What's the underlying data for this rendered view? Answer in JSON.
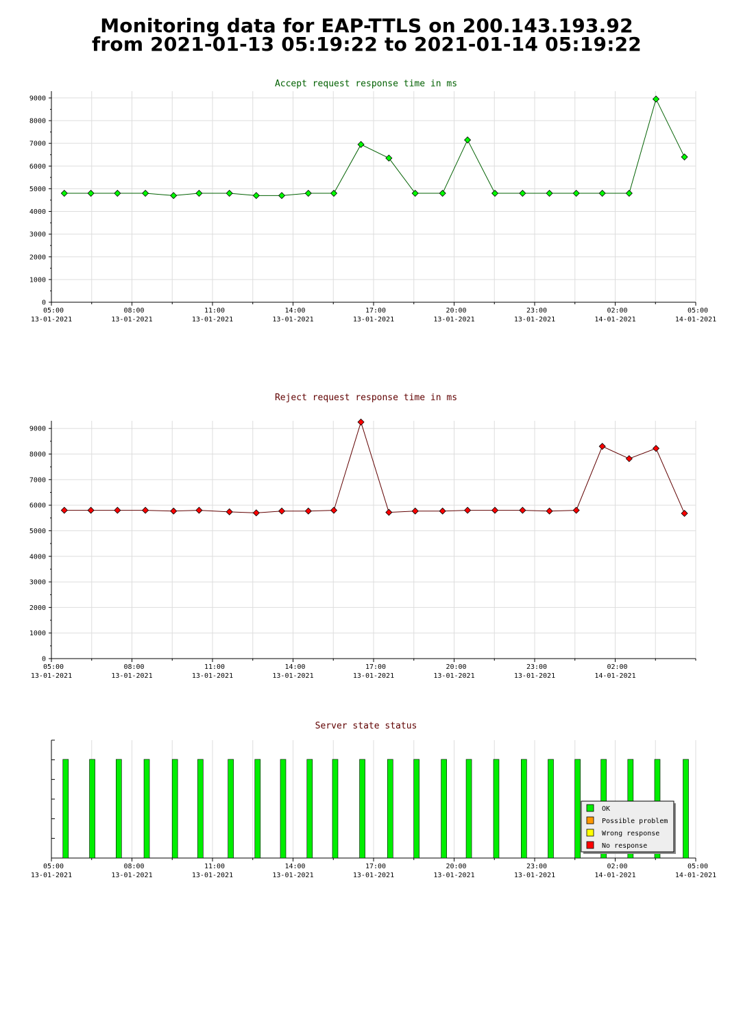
{
  "header": {
    "line1": "Monitoring data for EAP-TTLS on 200.143.193.92",
    "line2": "from 2021-01-13 05:19:22 to 2021-01-14 05:19:22"
  },
  "colors": {
    "accept_line": "#006000",
    "accept_marker": "#00ff00",
    "reject_line": "#600000",
    "reject_marker": "#ff0000",
    "status_ok": "#00ee00",
    "status_possible_problem": "#ff9900",
    "status_wrong_response": "#ffff00",
    "status_no_response": "#ff0000",
    "grid": "#dddddd"
  },
  "chart_data": [
    {
      "type": "line",
      "title": "Accept request response time in ms",
      "xlabel": "",
      "ylabel": "",
      "ylim": [
        0,
        9300
      ],
      "yticks": [
        0,
        1000,
        2000,
        3000,
        4000,
        5000,
        6000,
        7000,
        8000,
        9000
      ],
      "xlim_hours": [
        0,
        24
      ],
      "xticks": [
        {
          "h": 0,
          "time": "05:00",
          "date": "13-01-2021"
        },
        {
          "h": 3,
          "time": "08:00",
          "date": "13-01-2021"
        },
        {
          "h": 6,
          "time": "11:00",
          "date": "13-01-2021"
        },
        {
          "h": 9,
          "time": "14:00",
          "date": "13-01-2021"
        },
        {
          "h": 12,
          "time": "17:00",
          "date": "13-01-2021"
        },
        {
          "h": 15,
          "time": "20:00",
          "date": "13-01-2021"
        },
        {
          "h": 18,
          "time": "23:00",
          "date": "13-01-2021"
        },
        {
          "h": 21,
          "time": "02:00",
          "date": "14-01-2021"
        },
        {
          "h": 24,
          "time": "05:00",
          "date": "14-01-2021"
        }
      ],
      "grid": true,
      "series": [
        {
          "x": [
            0.48,
            1.47,
            2.46,
            3.5,
            4.55,
            5.5,
            6.63,
            7.63,
            8.58,
            9.57,
            10.52,
            11.53,
            12.57,
            13.55,
            14.57,
            15.5,
            16.52,
            17.55,
            18.55,
            19.55,
            20.52,
            21.52,
            22.52,
            23.58
          ],
          "values": [
            4800,
            4800,
            4800,
            4800,
            4700,
            4800,
            4800,
            4700,
            4700,
            4800,
            4800,
            6950,
            6350,
            4800,
            4800,
            7150,
            4800,
            4800,
            4800,
            4800,
            4800,
            4800,
            8950,
            6400
          ]
        }
      ]
    },
    {
      "type": "line",
      "title": "Reject request response time in ms",
      "xlabel": "",
      "ylabel": "",
      "ylim": [
        0,
        9300
      ],
      "yticks": [
        0,
        1000,
        2000,
        3000,
        4000,
        5000,
        6000,
        7000,
        8000,
        9000
      ],
      "xlim_hours": [
        0,
        24
      ],
      "xticks": [
        {
          "h": 0,
          "time": "05:00",
          "date": "13-01-2021"
        },
        {
          "h": 3,
          "time": "08:00",
          "date": "13-01-2021"
        },
        {
          "h": 6,
          "time": "11:00",
          "date": "13-01-2021"
        },
        {
          "h": 9,
          "time": "14:00",
          "date": "13-01-2021"
        },
        {
          "h": 12,
          "time": "17:00",
          "date": "13-01-2021"
        },
        {
          "h": 15,
          "time": "20:00",
          "date": "13-01-2021"
        },
        {
          "h": 18,
          "time": "23:00",
          "date": "13-01-2021"
        },
        {
          "h": 21,
          "time": "02:00",
          "date": "14-01-2021"
        }
      ],
      "grid": true,
      "series": [
        {
          "x": [
            0.48,
            1.47,
            2.46,
            3.5,
            4.55,
            5.5,
            6.63,
            7.63,
            8.58,
            9.57,
            10.52,
            11.53,
            12.57,
            13.55,
            14.57,
            15.5,
            16.52,
            17.55,
            18.55,
            19.55,
            20.52,
            21.52,
            22.52,
            23.58
          ],
          "values": [
            5800,
            5800,
            5800,
            5800,
            5770,
            5800,
            5740,
            5700,
            5770,
            5770,
            5800,
            9250,
            5720,
            5770,
            5770,
            5800,
            5800,
            5800,
            5770,
            5800,
            8300,
            7820,
            8220,
            5680
          ]
        }
      ]
    },
    {
      "type": "bar",
      "title": "Server state status",
      "xlabel": "",
      "ylabel": "",
      "xlim_hours": [
        0,
        24
      ],
      "xticks": [
        {
          "h": 0,
          "time": "05:00",
          "date": "13-01-2021"
        },
        {
          "h": 3,
          "time": "08:00",
          "date": "13-01-2021"
        },
        {
          "h": 6,
          "time": "11:00",
          "date": "13-01-2021"
        },
        {
          "h": 9,
          "time": "14:00",
          "date": "13-01-2021"
        },
        {
          "h": 12,
          "time": "17:00",
          "date": "13-01-2021"
        },
        {
          "h": 15,
          "time": "20:00",
          "date": "13-01-2021"
        },
        {
          "h": 18,
          "time": "23:00",
          "date": "13-01-2021"
        },
        {
          "h": 21,
          "time": "02:00",
          "date": "14-01-2021"
        },
        {
          "h": 24,
          "time": "05:00",
          "date": "14-01-2021"
        }
      ],
      "x": [
        0.53,
        1.52,
        2.51,
        3.55,
        4.6,
        5.55,
        6.68,
        7.68,
        8.63,
        9.62,
        10.57,
        11.58,
        12.62,
        13.6,
        14.62,
        15.55,
        16.57,
        17.6,
        18.6,
        19.6,
        20.57,
        21.57,
        22.57,
        23.63
      ],
      "states": [
        "OK",
        "OK",
        "OK",
        "OK",
        "OK",
        "OK",
        "OK",
        "OK",
        "OK",
        "OK",
        "OK",
        "OK",
        "OK",
        "OK",
        "OK",
        "OK",
        "OK",
        "OK",
        "OK",
        "OK",
        "OK",
        "OK",
        "OK",
        "OK"
      ],
      "legend_position": "bottom-right",
      "legend": [
        {
          "label": "OK",
          "color": "#00ee00"
        },
        {
          "label": "Possible problem",
          "color": "#ff9900"
        },
        {
          "label": "Wrong response",
          "color": "#ffff00"
        },
        {
          "label": "No response",
          "color": "#ff0000"
        }
      ]
    }
  ]
}
